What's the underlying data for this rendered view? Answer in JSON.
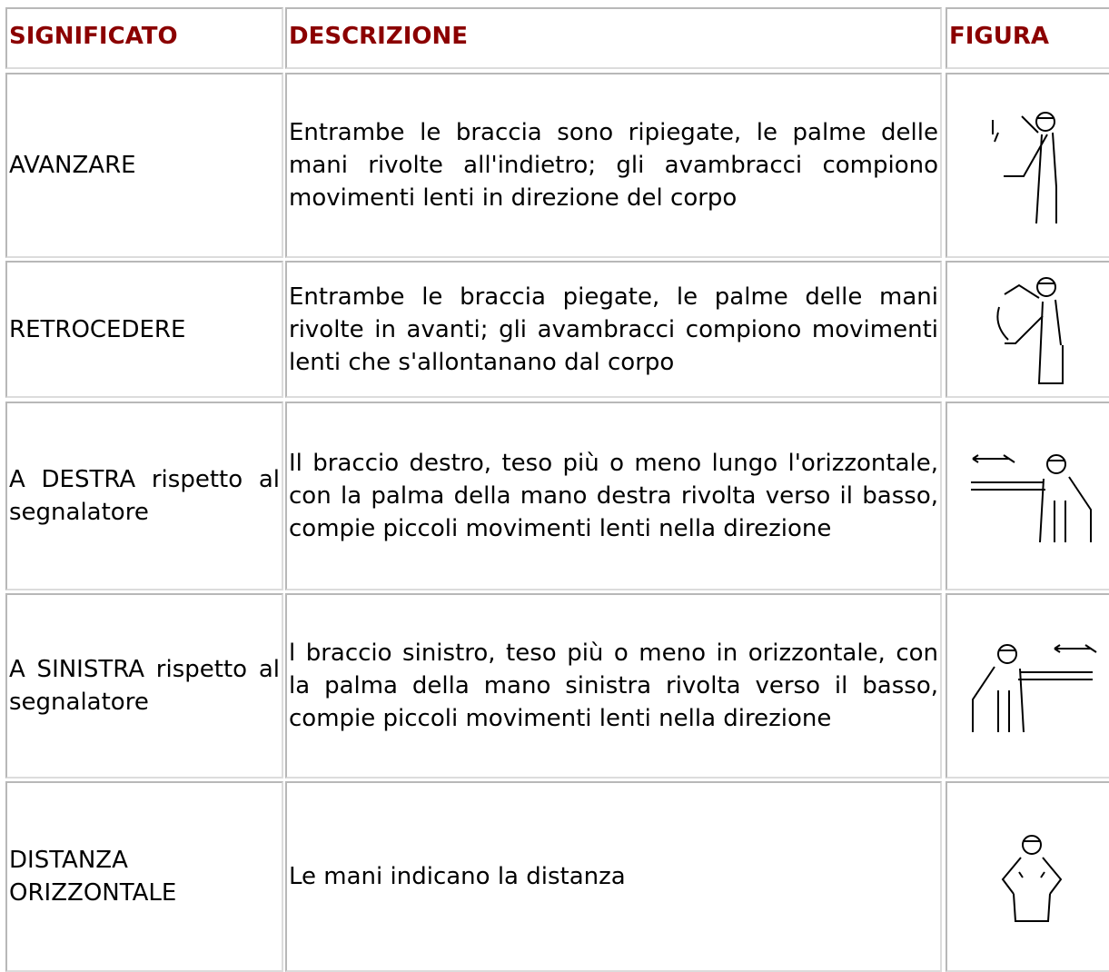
{
  "table": {
    "header": [
      "SIGNIFICATO",
      "DESCRIZIONE",
      "FIGURA"
    ],
    "rows": [
      [
        "AVANZARE",
        "Entrambe le braccia sono ripiegate, le palme delle mani rivolte all'indietro; gli avambracci compiono movimenti lenti in direzione del corpo"
      ],
      [
        "RETROCEDERE",
        "Entrambe le braccia piegate, le palme delle mani rivolte in avanti; gli avambracci compiono movimenti lenti che s'allontanano dal corpo"
      ],
      [
        "A DESTRA rispetto al segnalatore",
        "Il braccio destro, teso più o meno lungo l'orizzontale, con la palma della mano destra rivolta verso il basso, compie piccoli movimenti lenti nella direzione"
      ],
      [
        "A SINISTRA rispetto al segnalatore",
        "l braccio sinistro, teso più o meno in orizzontale, con la palma della mano sinistra rivolta verso il basso, compie piccoli movimenti lenti nella direzione"
      ],
      [
        "DISTANZA ORIZZONTALE",
        "Le mani indicano la distanza"
      ]
    ]
  }
}
